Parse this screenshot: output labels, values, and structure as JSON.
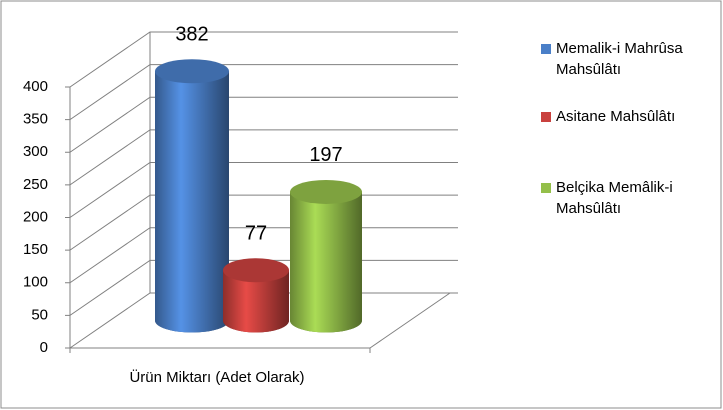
{
  "chart_data": {
    "type": "bar3d",
    "categories": [
      "Ürün Miktarı  (Adet Olarak)"
    ],
    "series": [
      {
        "name": "Memalik-i Mahrûsa Mahsûlâtı",
        "color": "#4a7fc8",
        "values": [
          382
        ]
      },
      {
        "name": "Asitane Mahsûlâtı",
        "color": "#c9413e",
        "values": [
          77
        ]
      },
      {
        "name": "Belçika Memâlik-i Mahsûlâtı",
        "color": "#94bf4a",
        "values": [
          197
        ]
      }
    ],
    "ylim": [
      0,
      400
    ],
    "yticks": [
      0,
      50,
      100,
      150,
      200,
      250,
      300,
      350,
      400
    ],
    "grid": true,
    "legend": "right"
  }
}
